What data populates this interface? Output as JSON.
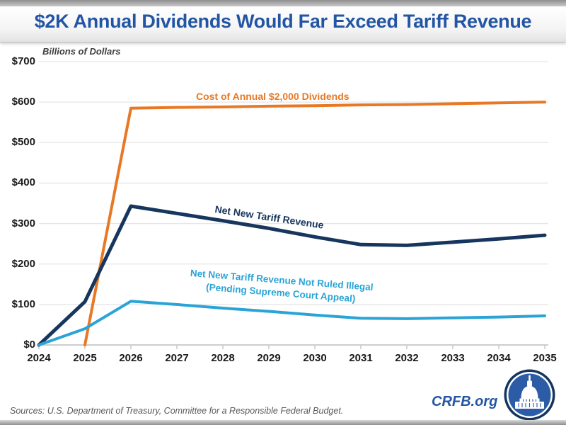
{
  "header": {
    "title": "$2K Annual Dividends Would Far Exceed Tariff Revenue"
  },
  "colors": {
    "title_blue": "#2255A4",
    "brand_blue": "#2255A4",
    "dividends_orange": "#E87824",
    "tariff_navy": "#17365D",
    "tariff_legal_lightblue": "#2AA4D6",
    "gridline_gray": "#e6e6e6",
    "axis_gray": "#cdcdcd"
  },
  "chart_data": {
    "type": "line",
    "title": "$2K Annual Dividends Would Far Exceed Tariff Revenue",
    "unit_label": "Billions of Dollars",
    "xlim": [
      2024,
      2035
    ],
    "ylim": [
      0,
      700
    ],
    "grid": true,
    "legend_position": "inline-labels",
    "x": [
      2024,
      2025,
      2026,
      2027,
      2028,
      2029,
      2030,
      2031,
      2032,
      2033,
      2034,
      2035
    ],
    "x_labels": [
      "2024",
      "2025",
      "2026",
      "2027",
      "2028",
      "2029",
      "2030",
      "2031",
      "2032",
      "2033",
      "2034",
      "2035"
    ],
    "y_ticks": [
      {
        "value": 0,
        "label": "$0"
      },
      {
        "value": 100,
        "label": "$100"
      },
      {
        "value": 200,
        "label": "$200"
      },
      {
        "value": 300,
        "label": "$300"
      },
      {
        "value": 400,
        "label": "$400"
      },
      {
        "value": 500,
        "label": "$500"
      },
      {
        "value": 600,
        "label": "$600"
      },
      {
        "value": 700,
        "label": "$700"
      }
    ],
    "series": [
      {
        "id": "dividends",
        "name": "Cost of Annual $2,000 Dividends",
        "label": "Cost of Annual $2,000 Dividends",
        "color": "#E87824",
        "x": [
          2025,
          2026,
          2027,
          2028,
          2029,
          2030,
          2031,
          2032,
          2033,
          2034,
          2035
        ],
        "values": [
          0,
          585,
          587,
          588,
          590,
          591,
          593,
          594,
          596,
          598,
          600
        ]
      },
      {
        "id": "tariff-revenue",
        "name": "Net New Tariff Revenue",
        "label": "Net New Tariff Revenue",
        "color": "#17365D",
        "x": [
          2024,
          2025,
          2026,
          2027,
          2028,
          2029,
          2030,
          2031,
          2032,
          2033,
          2034,
          2035
        ],
        "values": [
          0,
          107,
          343,
          325,
          307,
          288,
          267,
          248,
          246,
          254,
          262,
          271
        ]
      },
      {
        "id": "tariff-revenue-not-ruled-illegal",
        "name": "Net New Tariff Revenue Not Ruled Illegal (Pending Supreme Court Appeal)",
        "label_line1": "Net New Tariff Revenue Not Ruled Illegal",
        "label_line2": "(Pending Supreme Court Appeal)",
        "color": "#2AA4D6",
        "x": [
          2024,
          2025,
          2026,
          2027,
          2028,
          2029,
          2030,
          2031,
          2032,
          2033,
          2034,
          2035
        ],
        "values": [
          0,
          40,
          108,
          100,
          91,
          83,
          74,
          66,
          65,
          67,
          69,
          72
        ]
      }
    ]
  },
  "footer": {
    "sources": "Sources: U.S. Department of Treasury, Committee for a Responsible Federal Budget.",
    "brand": "CRFB.org"
  }
}
